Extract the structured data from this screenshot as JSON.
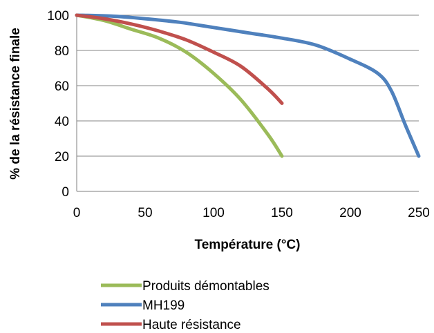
{
  "chart_data": {
    "type": "line",
    "xlabel": "Température (°C)",
    "ylabel": "% de la résistance finale",
    "xlim": [
      0,
      250
    ],
    "ylim": [
      0,
      100
    ],
    "xticks": [
      0,
      50,
      100,
      150,
      200,
      250
    ],
    "yticks": [
      0,
      20,
      40,
      60,
      80,
      100
    ],
    "grid": "horizontal",
    "legend": "bottom",
    "series": [
      {
        "name": "Produits démontables",
        "color": "#9BBB59",
        "x": [
          0,
          20,
          40,
          60,
          80,
          100,
          120,
          140,
          150
        ],
        "y": [
          100,
          97,
          92,
          87,
          79,
          67,
          52,
          32,
          20
        ]
      },
      {
        "name": "MH199",
        "color": "#4F81BD",
        "x": [
          0,
          25,
          50,
          75,
          100,
          125,
          150,
          175,
          200,
          220,
          230,
          240,
          250
        ],
        "y": [
          100,
          99.5,
          98,
          96,
          93,
          90,
          87,
          83,
          75,
          67,
          57,
          38,
          20
        ]
      },
      {
        "name": "Haute résistance",
        "color": "#C0504D",
        "x": [
          0,
          20,
          40,
          60,
          80,
          100,
          120,
          140,
          150
        ],
        "y": [
          100,
          98,
          95,
          91,
          86,
          79,
          71,
          58,
          50
        ]
      }
    ]
  }
}
